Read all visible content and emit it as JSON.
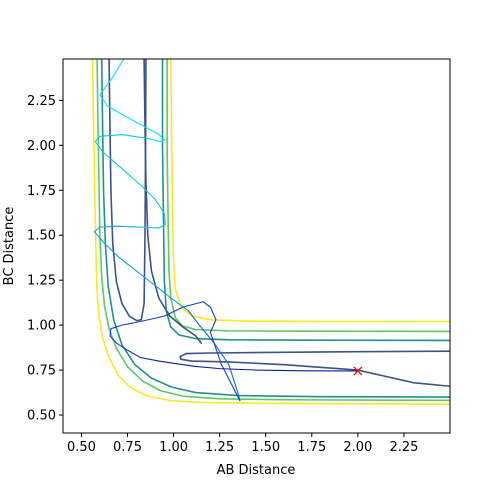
{
  "chart_data": {
    "type": "line",
    "title": "",
    "xlabel": "AB Distance",
    "ylabel": "BC Distance",
    "xlim": [
      0.4,
      2.5
    ],
    "ylim": [
      0.4,
      2.48
    ],
    "xticks": [
      0.5,
      0.75,
      1.0,
      1.25,
      1.5,
      1.75,
      2.0,
      2.25
    ],
    "yticks": [
      0.5,
      0.75,
      1.0,
      1.25,
      1.5,
      1.75,
      2.0,
      2.25
    ],
    "xtick_labels": [
      "0.50",
      "0.75",
      "1.00",
      "1.25",
      "1.50",
      "1.75",
      "2.00",
      "2.25"
    ],
    "ytick_labels": [
      "0.50",
      "0.75",
      "1.00",
      "1.25",
      "1.50",
      "1.75",
      "2.00",
      "2.25"
    ],
    "grid": false,
    "legend": false,
    "contours": [
      {
        "color": "#fde725",
        "points": [
          [
            0.56,
            2.48
          ],
          [
            0.565,
            2.2
          ],
          [
            0.57,
            1.9
          ],
          [
            0.575,
            1.6
          ],
          [
            0.58,
            1.35
          ],
          [
            0.585,
            1.18
          ],
          [
            0.595,
            1.05
          ],
          [
            0.615,
            0.93
          ],
          [
            0.65,
            0.82
          ],
          [
            0.7,
            0.72
          ],
          [
            0.77,
            0.65
          ],
          [
            0.86,
            0.605
          ],
          [
            0.98,
            0.58
          ],
          [
            1.15,
            0.57
          ],
          [
            1.5,
            0.565
          ],
          [
            2.0,
            0.562
          ],
          [
            2.5,
            0.56
          ]
        ]
      },
      {
        "color": "#fde725",
        "points": [
          [
            0.985,
            2.48
          ],
          [
            0.99,
            2.0
          ],
          [
            0.995,
            1.6
          ],
          [
            1.0,
            1.35
          ],
          [
            1.01,
            1.2
          ],
          [
            1.04,
            1.1
          ],
          [
            1.1,
            1.05
          ],
          [
            1.2,
            1.03
          ],
          [
            1.4,
            1.022
          ],
          [
            1.8,
            1.02
          ],
          [
            2.5,
            1.02
          ]
        ]
      },
      {
        "color": "#5ec962",
        "points": [
          [
            0.585,
            2.48
          ],
          [
            0.59,
            2.1
          ],
          [
            0.595,
            1.8
          ],
          [
            0.6,
            1.5
          ],
          [
            0.61,
            1.27
          ],
          [
            0.625,
            1.11
          ],
          [
            0.65,
            0.98
          ],
          [
            0.69,
            0.87
          ],
          [
            0.75,
            0.77
          ],
          [
            0.83,
            0.69
          ],
          [
            0.93,
            0.635
          ],
          [
            1.05,
            0.605
          ],
          [
            1.25,
            0.59
          ],
          [
            1.6,
            0.585
          ],
          [
            2.0,
            0.583
          ],
          [
            2.5,
            0.582
          ]
        ]
      },
      {
        "color": "#5ec962",
        "points": [
          [
            0.965,
            2.48
          ],
          [
            0.965,
            2.0
          ],
          [
            0.97,
            1.6
          ],
          [
            0.975,
            1.3
          ],
          [
            0.985,
            1.15
          ],
          [
            1.01,
            1.04
          ],
          [
            1.05,
            0.995
          ],
          [
            1.12,
            0.975
          ],
          [
            1.3,
            0.968
          ],
          [
            1.7,
            0.966
          ],
          [
            2.5,
            0.965
          ]
        ]
      },
      {
        "color": "#21918c",
        "points": [
          [
            0.61,
            2.48
          ],
          [
            0.615,
            2.1
          ],
          [
            0.62,
            1.75
          ],
          [
            0.63,
            1.45
          ],
          [
            0.645,
            1.22
          ],
          [
            0.675,
            1.03
          ],
          [
            0.72,
            0.89
          ],
          [
            0.79,
            0.78
          ],
          [
            0.88,
            0.705
          ],
          [
            0.99,
            0.655
          ],
          [
            1.12,
            0.625
          ],
          [
            1.35,
            0.608
          ],
          [
            1.8,
            0.602
          ],
          [
            2.5,
            0.6
          ]
        ]
      },
      {
        "color": "#21918c",
        "points": [
          [
            0.94,
            2.48
          ],
          [
            0.94,
            2.0
          ],
          [
            0.945,
            1.6
          ],
          [
            0.95,
            1.25
          ],
          [
            0.96,
            1.08
          ],
          [
            0.985,
            0.99
          ],
          [
            1.03,
            0.945
          ],
          [
            1.12,
            0.925
          ],
          [
            1.3,
            0.918
          ],
          [
            1.8,
            0.916
          ],
          [
            2.5,
            0.915
          ]
        ]
      },
      {
        "color": "#3b528b",
        "points": [
          [
            0.65,
            2.48
          ],
          [
            0.655,
            2.1
          ],
          [
            0.66,
            1.75
          ],
          [
            0.67,
            1.45
          ],
          [
            0.69,
            1.24
          ],
          [
            0.72,
            1.12
          ],
          [
            0.76,
            1.05
          ],
          [
            0.8,
            1.025
          ],
          [
            0.825,
            1.03
          ],
          [
            0.84,
            1.12
          ],
          [
            0.845,
            1.5
          ],
          [
            0.848,
            2.0
          ],
          [
            0.85,
            2.48
          ]
        ]
      },
      {
        "color": "#3b528b",
        "points": [
          [
            2.5,
            0.855
          ],
          [
            2.0,
            0.852
          ],
          [
            1.5,
            0.848
          ],
          [
            1.2,
            0.845
          ],
          [
            1.07,
            0.842
          ],
          [
            1.035,
            0.825
          ],
          [
            1.04,
            0.81
          ],
          [
            1.1,
            0.8
          ],
          [
            1.3,
            0.795
          ],
          [
            1.6,
            0.78
          ],
          [
            2.0,
            0.75
          ],
          [
            2.3,
            0.68
          ],
          [
            2.5,
            0.66
          ]
        ]
      },
      {
        "color": "#3b528b",
        "points": [
          [
            0.84,
            2.48
          ],
          [
            0.845,
            2.1
          ],
          [
            0.85,
            1.8
          ],
          [
            0.86,
            1.5
          ],
          [
            0.88,
            1.3
          ],
          [
            0.92,
            1.15
          ],
          [
            0.98,
            1.05
          ],
          [
            1.05,
            0.99
          ],
          [
            1.12,
            0.94
          ],
          [
            1.15,
            0.9
          ]
        ]
      }
    ],
    "trajectory": {
      "segments": [
        {
          "color": "#00e5ff",
          "points": [
            [
              0.73,
              2.48
            ],
            [
              0.67,
              2.38
            ],
            [
              0.6,
              2.28
            ],
            [
              0.64,
              2.22
            ],
            [
              0.74,
              2.16
            ],
            [
              0.85,
              2.1
            ],
            [
              0.92,
              2.06
            ],
            [
              0.95,
              2.03
            ],
            [
              0.93,
              2.02
            ],
            [
              0.85,
              2.04
            ]
          ]
        },
        {
          "color": "#00c8f0",
          "points": [
            [
              0.85,
              2.04
            ],
            [
              0.72,
              2.06
            ],
            [
              0.6,
              2.05
            ],
            [
              0.575,
              2.02
            ],
            [
              0.62,
              1.96
            ],
            [
              0.72,
              1.87
            ],
            [
              0.82,
              1.78
            ],
            [
              0.9,
              1.7
            ],
            [
              0.95,
              1.62
            ],
            [
              0.955,
              1.56
            ],
            [
              0.92,
              1.54
            ],
            [
              0.82,
              1.545
            ]
          ]
        },
        {
          "color": "#0aa6e6",
          "points": [
            [
              0.82,
              1.545
            ],
            [
              0.7,
              1.55
            ],
            [
              0.6,
              1.545
            ],
            [
              0.57,
              1.52
            ],
            [
              0.62,
              1.46
            ],
            [
              0.7,
              1.38
            ],
            [
              0.8,
              1.3
            ],
            [
              0.9,
              1.22
            ],
            [
              1.0,
              1.14
            ],
            [
              1.08,
              1.08
            ]
          ]
        },
        {
          "color": "#0a70d8",
          "points": [
            [
              1.08,
              1.08
            ],
            [
              1.14,
              1.0
            ],
            [
              1.22,
              0.9
            ],
            [
              1.3,
              0.78
            ],
            [
              1.35,
              0.62
            ],
            [
              1.36,
              0.58
            ]
          ]
        },
        {
          "color": "#1040c8",
          "points": [
            [
              1.36,
              0.58
            ],
            [
              1.32,
              0.66
            ],
            [
              1.26,
              0.78
            ],
            [
              1.22,
              0.9
            ],
            [
              1.2,
              0.96
            ],
            [
              1.23,
              1.03
            ],
            [
              1.2,
              1.1
            ],
            [
              1.16,
              1.13
            ],
            [
              1.05,
              1.1
            ],
            [
              0.95,
              1.05
            ],
            [
              0.82,
              1.02
            ],
            [
              0.72,
              1.0
            ],
            [
              0.66,
              0.98
            ],
            [
              0.655,
              0.94
            ],
            [
              0.69,
              0.9
            ],
            [
              0.75,
              0.86
            ],
            [
              0.82,
              0.82
            ]
          ]
        },
        {
          "color": "#0a1e9a",
          "points": [
            [
              0.82,
              0.82
            ],
            [
              0.92,
              0.8
            ],
            [
              1.02,
              0.785
            ],
            [
              1.12,
              0.77
            ],
            [
              1.25,
              0.758
            ],
            [
              1.45,
              0.75
            ],
            [
              1.7,
              0.746
            ],
            [
              1.9,
              0.745
            ],
            [
              2.0,
              0.745
            ]
          ]
        }
      ]
    },
    "marker": {
      "x": 2.0,
      "y": 0.745,
      "symbol": "x",
      "color": "#ff0000"
    }
  }
}
